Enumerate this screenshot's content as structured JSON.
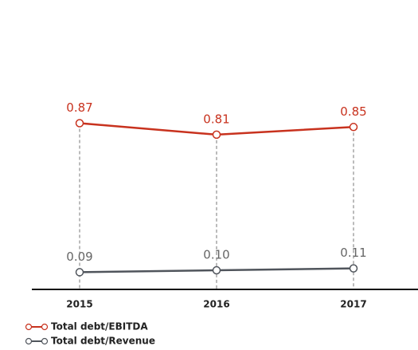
{
  "chart_data": {
    "type": "line",
    "categories": [
      "2015",
      "2016",
      "2017"
    ],
    "series": [
      {
        "name": "Total debt/EBITDA",
        "color": "#c8321e",
        "values": [
          0.87,
          0.81,
          0.85
        ],
        "value_labels": [
          "0.87",
          "0.81",
          "0.85"
        ]
      },
      {
        "name": "Total debt/Revenue",
        "color": "#50555c",
        "values": [
          0.09,
          0.1,
          0.11
        ],
        "value_labels": [
          "0.09",
          "0.10",
          "0.11"
        ]
      }
    ],
    "ylim": [
      0,
      1.5
    ]
  }
}
